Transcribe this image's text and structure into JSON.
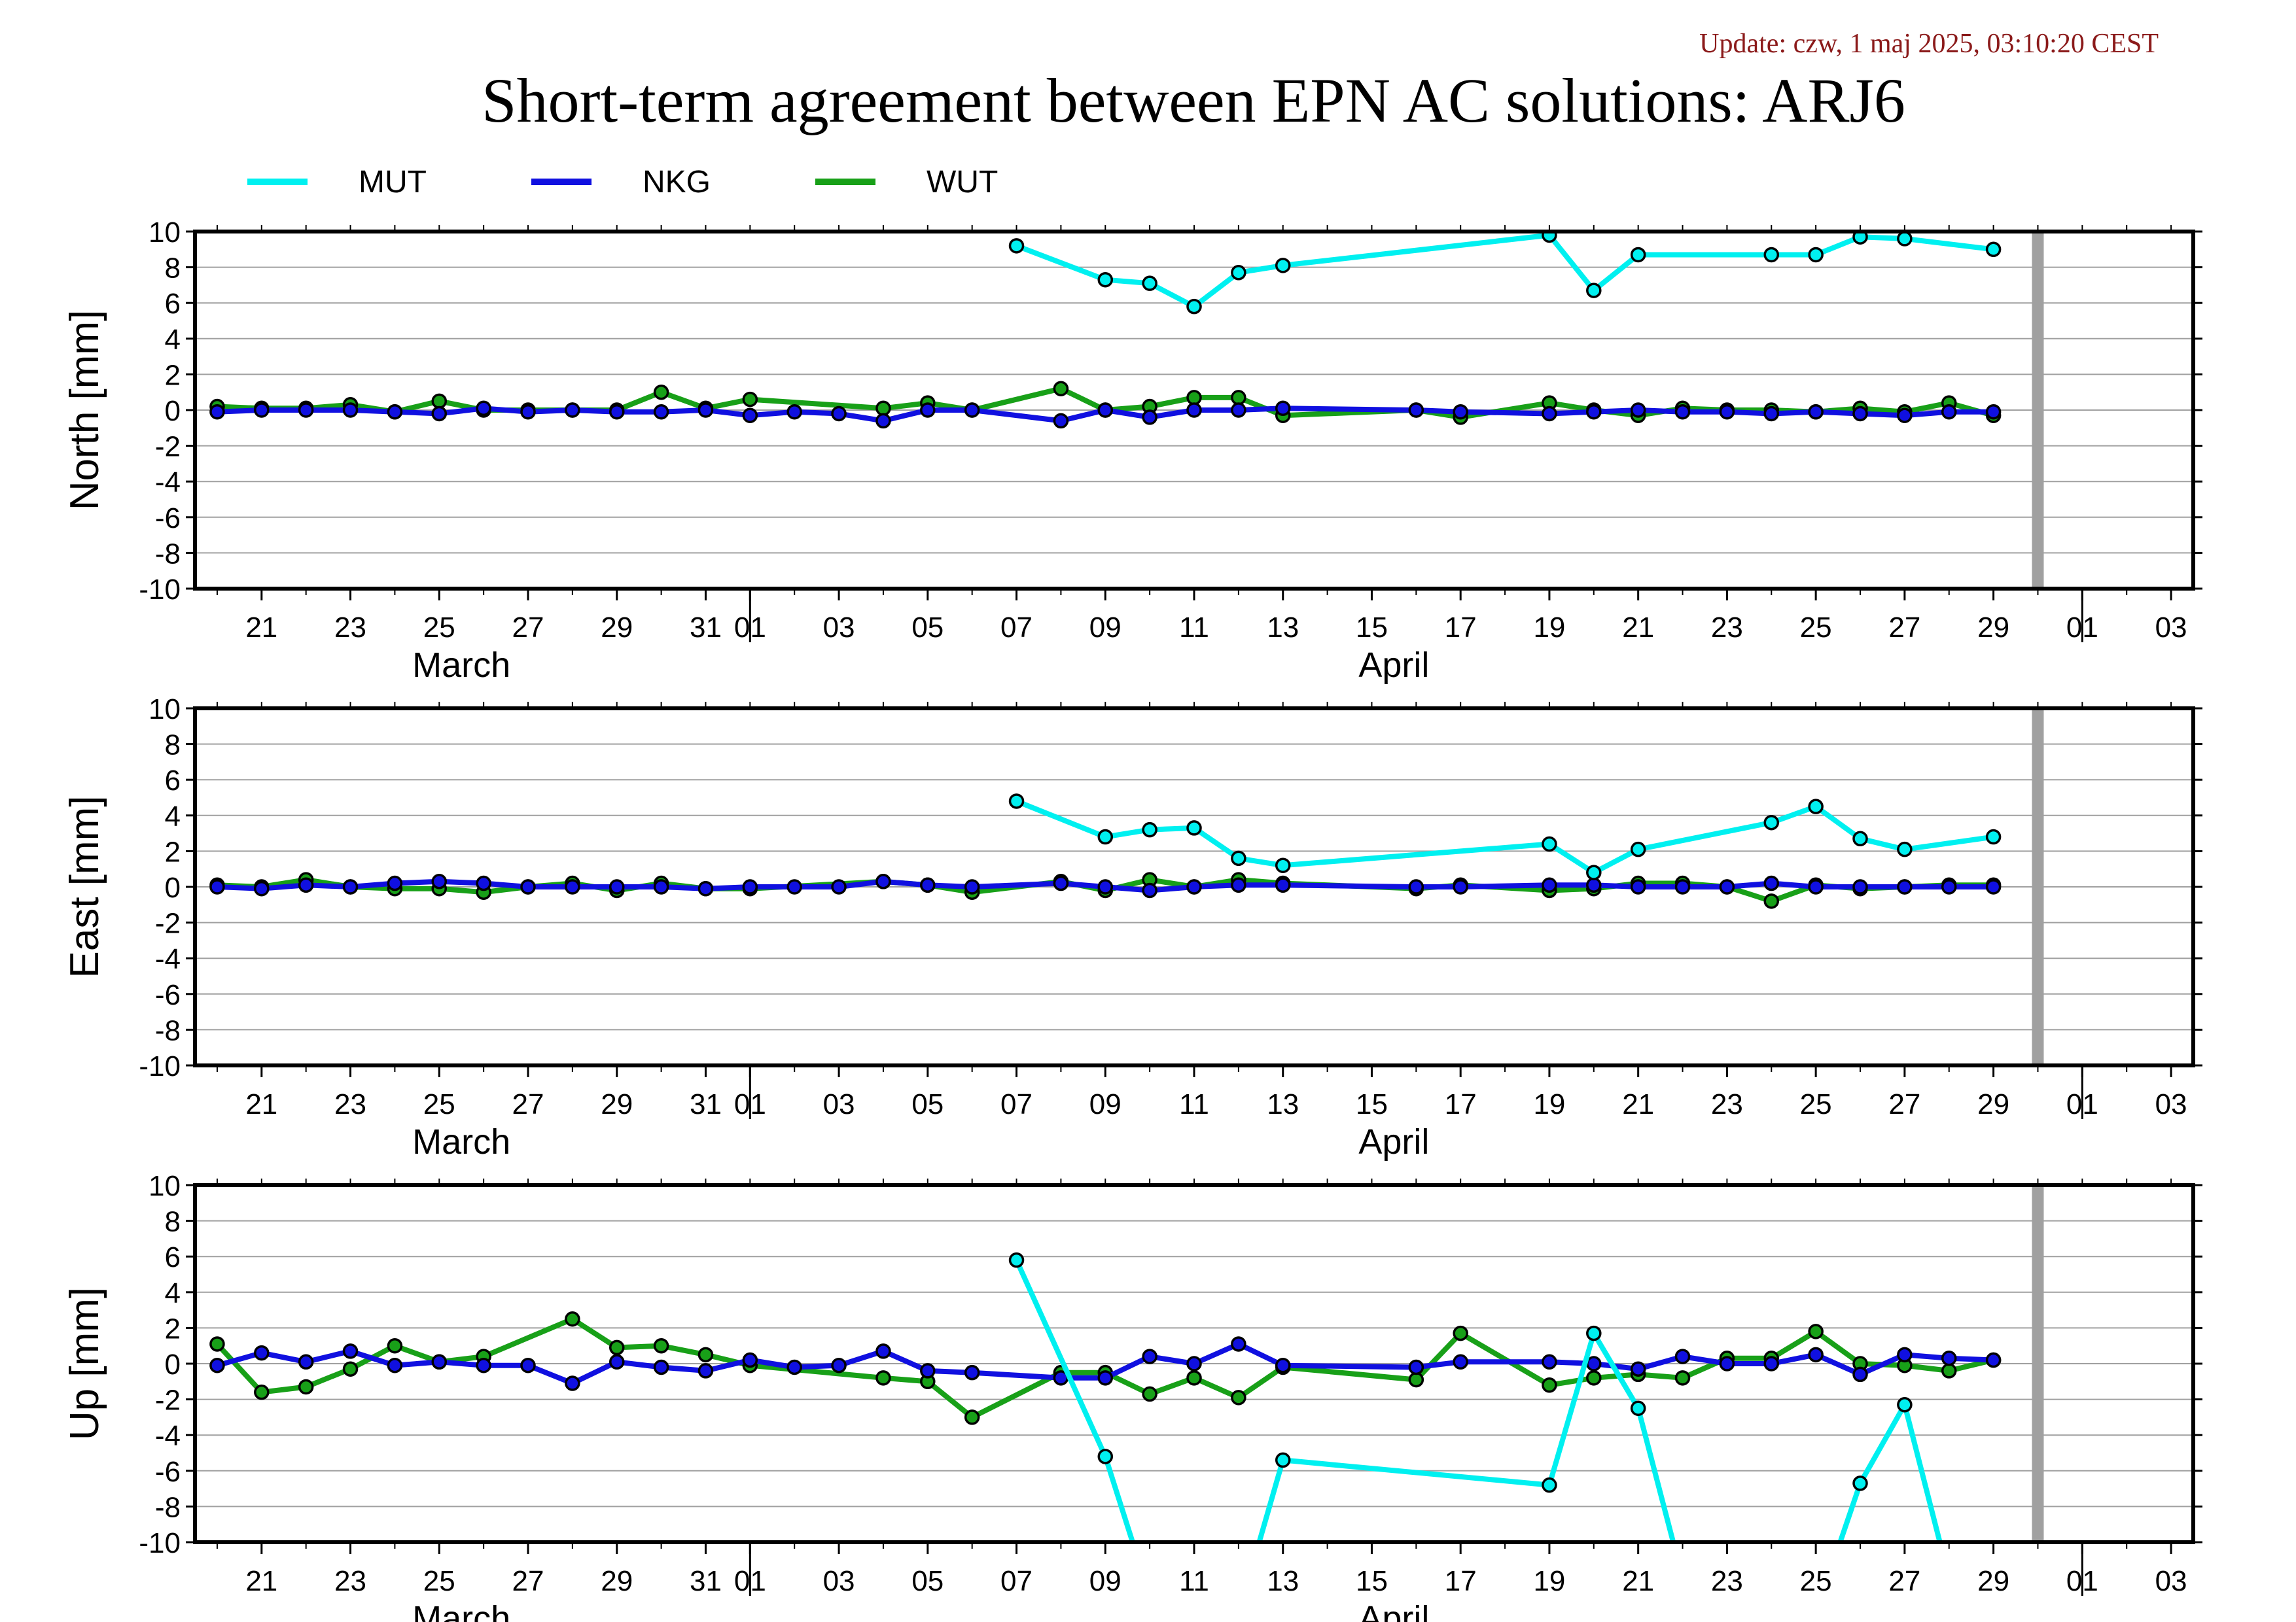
{
  "update_text": "Update: czw, 1 maj 2025, 03:10:20 CEST",
  "colors": {
    "MUT": "#00f0f0",
    "NKG": "#1010e0",
    "WUT": "#18a018",
    "update_text": "#8b1a1a",
    "gridline": "#a0a0a0",
    "gap_bar": "#a0a0a0"
  },
  "chart_data": {
    "type": "line",
    "title": "Short-term agreement between EPN AC solutions: ARJ6",
    "legend_placement": "top-left",
    "legend": [
      "MUT",
      "NKG",
      "WUT"
    ],
    "x_axis": {
      "type": "date",
      "range": [
        "2025-03-19T12:00",
        "2025-05-03T12:00"
      ],
      "tick_labels": [
        "21",
        "23",
        "25",
        "27",
        "29",
        "31",
        "01",
        "03",
        "05",
        "07",
        "09",
        "11",
        "13",
        "15",
        "17",
        "19",
        "21",
        "23",
        "25",
        "27",
        "29",
        "01",
        "03"
      ],
      "month_labels": [
        "March",
        "April"
      ],
      "data_gap_marker": "2025-04-30"
    },
    "ylim": [
      -10,
      10
    ],
    "y_ticks": [
      "10",
      "8",
      "6",
      "4",
      "2",
      "0",
      "-2",
      "-4",
      "-6",
      "-8",
      "-10"
    ],
    "grid": true,
    "panels": [
      {
        "ylabel": "North [mm]",
        "series": [
          {
            "name": "MUT",
            "x": [
              "2025-04-07",
              "2025-04-09",
              "2025-04-10",
              "2025-04-11",
              "2025-04-12",
              "2025-04-13",
              "2025-04-19",
              "2025-04-20",
              "2025-04-21",
              "2025-04-24",
              "2025-04-25",
              "2025-04-26",
              "2025-04-27",
              "2025-04-29"
            ],
            "y": [
              9.2,
              7.3,
              7.1,
              5.8,
              7.7,
              8.1,
              9.8,
              6.7,
              8.7,
              8.7,
              8.7,
              9.7,
              9.6,
              9.0
            ]
          },
          {
            "name": "NKG",
            "x": [
              "2025-03-20",
              "2025-03-21",
              "2025-03-22",
              "2025-03-23",
              "2025-03-24",
              "2025-03-25",
              "2025-03-26",
              "2025-03-27",
              "2025-03-28",
              "2025-03-29",
              "2025-03-30",
              "2025-03-31",
              "2025-04-01",
              "2025-04-02",
              "2025-04-03",
              "2025-04-04",
              "2025-04-05",
              "2025-04-06",
              "2025-04-08",
              "2025-04-09",
              "2025-04-10",
              "2025-04-11",
              "2025-04-12",
              "2025-04-13",
              "2025-04-16",
              "2025-04-17",
              "2025-04-19",
              "2025-04-20",
              "2025-04-21",
              "2025-04-22",
              "2025-04-23",
              "2025-04-24",
              "2025-04-25",
              "2025-04-26",
              "2025-04-27",
              "2025-04-28",
              "2025-04-29"
            ],
            "y": [
              -0.1,
              0.0,
              0.0,
              0.0,
              -0.1,
              -0.2,
              0.1,
              -0.1,
              0.0,
              -0.1,
              -0.1,
              0.0,
              -0.3,
              -0.1,
              -0.2,
              -0.6,
              0.0,
              0.0,
              -0.6,
              0.0,
              -0.4,
              0.0,
              0.0,
              0.1,
              0.0,
              -0.1,
              -0.2,
              -0.1,
              0.0,
              -0.1,
              -0.1,
              -0.2,
              -0.1,
              -0.2,
              -0.3,
              -0.1,
              -0.1
            ]
          },
          {
            "name": "WUT",
            "x": [
              "2025-03-20",
              "2025-03-21",
              "2025-03-22",
              "2025-03-23",
              "2025-03-24",
              "2025-03-25",
              "2025-03-26",
              "2025-03-27",
              "2025-03-28",
              "2025-03-29",
              "2025-03-30",
              "2025-03-31",
              "2025-04-01",
              "2025-04-04",
              "2025-04-05",
              "2025-04-06",
              "2025-04-08",
              "2025-04-09",
              "2025-04-10",
              "2025-04-11",
              "2025-04-12",
              "2025-04-13",
              "2025-04-16",
              "2025-04-17",
              "2025-04-19",
              "2025-04-20",
              "2025-04-21",
              "2025-04-22",
              "2025-04-23",
              "2025-04-24",
              "2025-04-25",
              "2025-04-26",
              "2025-04-27",
              "2025-04-28",
              "2025-04-29"
            ],
            "y": [
              0.2,
              0.1,
              0.1,
              0.3,
              -0.1,
              0.5,
              0.0,
              0.0,
              0.0,
              0.0,
              1.0,
              0.1,
              0.6,
              0.1,
              0.4,
              0.0,
              1.2,
              0.0,
              0.2,
              0.7,
              0.7,
              -0.3,
              0.0,
              -0.4,
              0.4,
              0.0,
              -0.3,
              0.1,
              0.0,
              0.0,
              -0.1,
              0.1,
              -0.1,
              0.4,
              -0.3
            ]
          }
        ]
      },
      {
        "ylabel": "East [mm]",
        "series": [
          {
            "name": "MUT",
            "x": [
              "2025-04-07",
              "2025-04-09",
              "2025-04-10",
              "2025-04-11",
              "2025-04-12",
              "2025-04-13",
              "2025-04-19",
              "2025-04-20",
              "2025-04-21",
              "2025-04-24",
              "2025-04-25",
              "2025-04-26",
              "2025-04-27",
              "2025-04-29"
            ],
            "y": [
              4.8,
              2.8,
              3.2,
              3.3,
              1.6,
              1.2,
              2.4,
              0.8,
              2.1,
              3.6,
              4.5,
              2.7,
              2.1,
              2.8
            ]
          },
          {
            "name": "NKG",
            "x": [
              "2025-03-20",
              "2025-03-21",
              "2025-03-22",
              "2025-03-23",
              "2025-03-24",
              "2025-03-25",
              "2025-03-26",
              "2025-03-27",
              "2025-03-28",
              "2025-03-29",
              "2025-03-30",
              "2025-03-31",
              "2025-04-01",
              "2025-04-02",
              "2025-04-03",
              "2025-04-04",
              "2025-04-05",
              "2025-04-06",
              "2025-04-08",
              "2025-04-09",
              "2025-04-10",
              "2025-04-11",
              "2025-04-12",
              "2025-04-13",
              "2025-04-16",
              "2025-04-17",
              "2025-04-19",
              "2025-04-20",
              "2025-04-21",
              "2025-04-22",
              "2025-04-23",
              "2025-04-24",
              "2025-04-25",
              "2025-04-26",
              "2025-04-27",
              "2025-04-28",
              "2025-04-29"
            ],
            "y": [
              0.0,
              -0.1,
              0.1,
              0.0,
              0.2,
              0.3,
              0.2,
              0.0,
              0.0,
              0.0,
              0.0,
              -0.1,
              0.0,
              0.0,
              0.0,
              0.3,
              0.1,
              0.0,
              0.2,
              0.0,
              -0.2,
              0.0,
              0.1,
              0.1,
              0.0,
              0.0,
              0.1,
              0.1,
              0.0,
              0.0,
              0.0,
              0.2,
              0.0,
              0.0,
              0.0,
              0.0,
              0.0
            ]
          },
          {
            "name": "WUT",
            "x": [
              "2025-03-20",
              "2025-03-21",
              "2025-03-22",
              "2025-03-23",
              "2025-03-24",
              "2025-03-25",
              "2025-03-26",
              "2025-03-27",
              "2025-03-28",
              "2025-03-29",
              "2025-03-30",
              "2025-03-31",
              "2025-04-01",
              "2025-04-04",
              "2025-04-05",
              "2025-04-06",
              "2025-04-08",
              "2025-04-09",
              "2025-04-10",
              "2025-04-11",
              "2025-04-12",
              "2025-04-13",
              "2025-04-16",
              "2025-04-17",
              "2025-04-19",
              "2025-04-20",
              "2025-04-21",
              "2025-04-22",
              "2025-04-23",
              "2025-04-24",
              "2025-04-25",
              "2025-04-26",
              "2025-04-27",
              "2025-04-28",
              "2025-04-29"
            ],
            "y": [
              0.1,
              0.0,
              0.4,
              0.0,
              -0.1,
              -0.1,
              -0.3,
              0.0,
              0.2,
              -0.2,
              0.2,
              -0.1,
              -0.1,
              0.3,
              0.1,
              -0.3,
              0.3,
              -0.2,
              0.4,
              0.0,
              0.4,
              0.2,
              -0.1,
              0.1,
              -0.2,
              -0.1,
              0.2,
              0.2,
              0.0,
              -0.8,
              0.1,
              -0.1,
              0.0,
              0.1,
              0.1
            ]
          }
        ]
      },
      {
        "ylabel": "Up [mm]",
        "series": [
          {
            "name": "MUT",
            "x": [
              "2025-04-07",
              "2025-04-09",
              "2025-04-10",
              "2025-04-12",
              "2025-04-13",
              "2025-04-19",
              "2025-04-20",
              "2025-04-21",
              "2025-04-22",
              "2025-04-25",
              "2025-04-26",
              "2025-04-27",
              "2025-04-28"
            ],
            "y": [
              5.8,
              -5.2,
              -13.0,
              -14.0,
              -5.4,
              -6.8,
              1.7,
              -2.5,
              -12.0,
              -14.0,
              -6.7,
              -2.3,
              -12.0
            ]
          },
          {
            "name": "NKG",
            "x": [
              "2025-03-20",
              "2025-03-21",
              "2025-03-22",
              "2025-03-23",
              "2025-03-24",
              "2025-03-25",
              "2025-03-26",
              "2025-03-27",
              "2025-03-28",
              "2025-03-29",
              "2025-03-30",
              "2025-03-31",
              "2025-04-01",
              "2025-04-02",
              "2025-04-03",
              "2025-04-04",
              "2025-04-05",
              "2025-04-06",
              "2025-04-08",
              "2025-04-09",
              "2025-04-10",
              "2025-04-11",
              "2025-04-12",
              "2025-04-13",
              "2025-04-16",
              "2025-04-17",
              "2025-04-19",
              "2025-04-20",
              "2025-04-21",
              "2025-04-22",
              "2025-04-23",
              "2025-04-24",
              "2025-04-25",
              "2025-04-26",
              "2025-04-27",
              "2025-04-28",
              "2025-04-29"
            ],
            "y": [
              -0.1,
              0.6,
              0.1,
              0.7,
              -0.1,
              0.1,
              -0.1,
              -0.1,
              -1.1,
              0.1,
              -0.2,
              -0.4,
              0.2,
              -0.2,
              -0.1,
              0.7,
              -0.4,
              -0.5,
              -0.8,
              -0.8,
              0.4,
              0.0,
              1.1,
              -0.1,
              -0.2,
              0.1,
              0.1,
              0.0,
              -0.3,
              0.4,
              0.0,
              0.0,
              0.5,
              -0.6,
              0.5,
              0.3,
              0.2
            ]
          },
          {
            "name": "WUT",
            "x": [
              "2025-03-20",
              "2025-03-21",
              "2025-03-22",
              "2025-03-23",
              "2025-03-24",
              "2025-03-25",
              "2025-03-26",
              "2025-03-28",
              "2025-03-29",
              "2025-03-30",
              "2025-03-31",
              "2025-04-01",
              "2025-04-04",
              "2025-04-05",
              "2025-04-06",
              "2025-04-08",
              "2025-04-09",
              "2025-04-10",
              "2025-04-11",
              "2025-04-12",
              "2025-04-13",
              "2025-04-16",
              "2025-04-17",
              "2025-04-19",
              "2025-04-20",
              "2025-04-21",
              "2025-04-22",
              "2025-04-23",
              "2025-04-24",
              "2025-04-25",
              "2025-04-26",
              "2025-04-27",
              "2025-04-28",
              "2025-04-29"
            ],
            "y": [
              1.1,
              -1.6,
              -1.3,
              -0.3,
              1.0,
              0.1,
              0.4,
              2.5,
              0.9,
              1.0,
              0.5,
              -0.1,
              -0.8,
              -1.0,
              -3.0,
              -0.5,
              -0.5,
              -1.7,
              -0.8,
              -1.9,
              -0.2,
              -0.9,
              1.7,
              -1.2,
              -0.8,
              -0.6,
              -0.8,
              0.3,
              0.3,
              1.8,
              0.0,
              -0.1,
              -0.4,
              0.2
            ]
          }
        ]
      }
    ]
  }
}
